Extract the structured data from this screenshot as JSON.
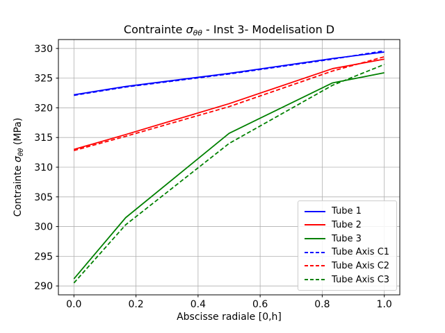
{
  "title": {
    "text": "Contrainte σθθ - Inst 3- Modelisation D",
    "prefix": "Contrainte ",
    "symbol": "σ",
    "subscript": "θθ",
    "suffix": " - Inst 3- Modelisation D"
  },
  "xlabel": "Abscisse radiale [0,h]",
  "ylabel": {
    "text": "Contrainte σθθ (MPa)",
    "prefix": "Contrainte ",
    "symbol": "σ",
    "subscript": "θθ",
    "suffix": " (MPa)"
  },
  "chart_data": {
    "type": "line",
    "title": "Contrainte σθθ - Inst 3- Modelisation D",
    "xlabel": "Abscisse radiale [0,h]",
    "ylabel": "Contrainte σθθ (MPa)",
    "x": [
      0.0,
      0.1667,
      0.5,
      0.8333,
      1.0
    ],
    "series": [
      {
        "name": "Tube 1",
        "color": "#0000ff",
        "style": "solid",
        "values": [
          322.2,
          323.6,
          325.8,
          328.3,
          329.4
        ]
      },
      {
        "name": "Tube 2",
        "color": "#ff0000",
        "style": "solid",
        "values": [
          313.0,
          315.5,
          320.7,
          326.6,
          328.2
        ]
      },
      {
        "name": "Tube 3",
        "color": "#008000",
        "style": "solid",
        "values": [
          291.2,
          301.5,
          315.7,
          324.2,
          325.9
        ]
      },
      {
        "name": "Tube Axis C1",
        "color": "#0000ff",
        "style": "dashed",
        "values": [
          322.1,
          323.5,
          325.7,
          328.2,
          329.6
        ]
      },
      {
        "name": "Tube Axis C2",
        "color": "#ff0000",
        "style": "dashed",
        "values": [
          312.8,
          315.2,
          320.2,
          326.2,
          328.6
        ]
      },
      {
        "name": "Tube Axis C3",
        "color": "#008000",
        "style": "dashed",
        "values": [
          290.5,
          300.3,
          314.0,
          323.8,
          327.3
        ]
      }
    ],
    "xlim": [
      -0.05,
      1.05
    ],
    "ylim": [
      288.5,
      331.5
    ],
    "x_tick_values": [
      0.0,
      0.2,
      0.4,
      0.6,
      0.8,
      1.0
    ],
    "x_tick_labels": [
      "0.0",
      "0.2",
      "0.4",
      "0.6",
      "0.8",
      "1.0"
    ],
    "y_tick_values": [
      290,
      295,
      300,
      305,
      310,
      315,
      320,
      325,
      330
    ],
    "y_tick_labels": [
      "290",
      "295",
      "300",
      "305",
      "310",
      "315",
      "320",
      "325",
      "330"
    ],
    "grid": true,
    "legend_position": "lower right",
    "legend_entries": [
      "Tube 1",
      "Tube 2",
      "Tube 3",
      "Tube Axis C1",
      "Tube Axis C2",
      "Tube Axis C3"
    ]
  },
  "colors": {
    "background": "#ffffff",
    "grid": "#b0b0b0",
    "spine": "#000000",
    "legend_border": "#cccccc",
    "tube1": "#0000ff",
    "tube2": "#ff0000",
    "tube3": "#008000"
  }
}
